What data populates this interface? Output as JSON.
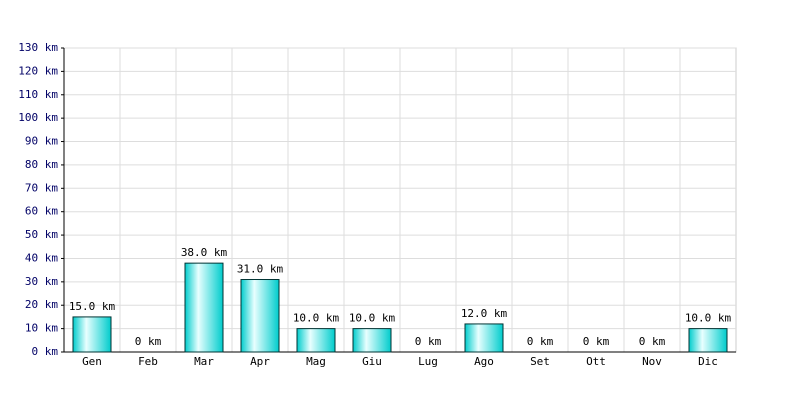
{
  "chart_data": {
    "type": "bar",
    "categories": [
      "Gen",
      "Feb",
      "Mar",
      "Apr",
      "Mag",
      "Giu",
      "Lug",
      "Ago",
      "Set",
      "Ott",
      "Nov",
      "Dic"
    ],
    "values": [
      15,
      0,
      38,
      31,
      10,
      10,
      0,
      12,
      0,
      0,
      0,
      10
    ],
    "value_labels": [
      "15.0 km",
      "0 km",
      "38.0 km",
      "31.0 km",
      "10.0 km",
      "10.0 km",
      "0 km",
      "12.0 km",
      "0 km",
      "0 km",
      "0 km",
      "10.0 km"
    ],
    "color": "#00cccc",
    "ylim": [
      0,
      130
    ],
    "yticks": [
      {
        "value": 0,
        "label": "0 km"
      },
      {
        "value": 10,
        "label": "10 km"
      },
      {
        "value": 20,
        "label": "20 km"
      },
      {
        "value": 30,
        "label": "30 km"
      },
      {
        "value": 40,
        "label": "40 km"
      },
      {
        "value": 50,
        "label": "50 km"
      },
      {
        "value": 60,
        "label": "60 km"
      },
      {
        "value": 70,
        "label": "70 km"
      },
      {
        "value": 80,
        "label": "80 km"
      },
      {
        "value": 90,
        "label": "90 km"
      },
      {
        "value": 100,
        "label": "100 km"
      },
      {
        "value": 110,
        "label": "110 km"
      },
      {
        "value": 120,
        "label": "120 km"
      },
      {
        "value": 130,
        "label": "130 km"
      }
    ],
    "grid": true
  }
}
